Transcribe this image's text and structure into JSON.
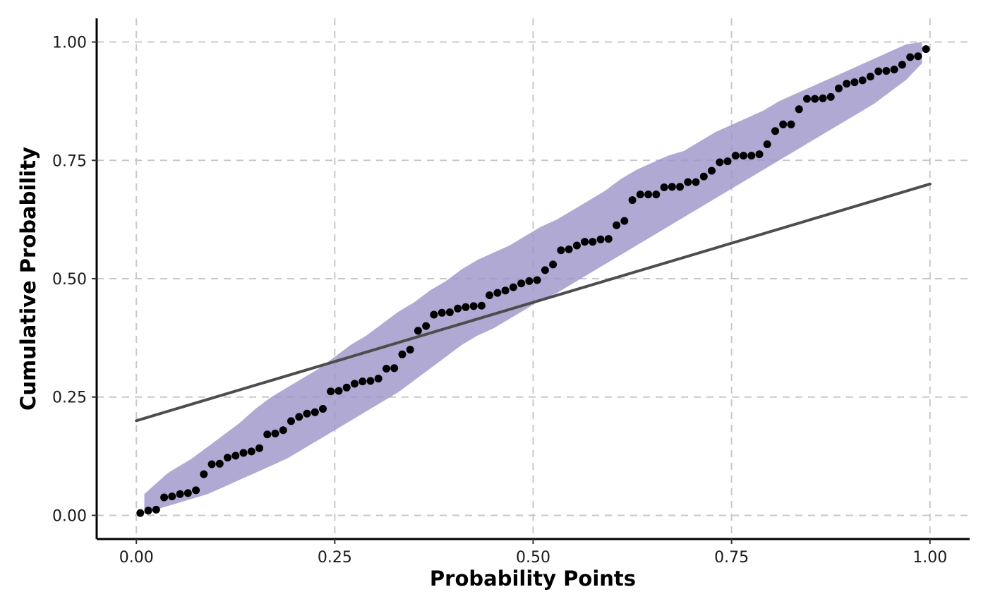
{
  "chart_data": {
    "type": "scatter",
    "title": "",
    "xlabel": "Probability Points",
    "ylabel": "Cumulative Probability",
    "xlim": [
      -0.05,
      1.05
    ],
    "ylim": [
      -0.05,
      1.05
    ],
    "grid": true,
    "legend": "none",
    "x_ticks": [
      0,
      0.25,
      0.5,
      0.75,
      1
    ],
    "x_tick_labels": [
      "0.00",
      "0.25",
      "0.50",
      "0.75",
      "1.00"
    ],
    "y_ticks": [
      0,
      0.25,
      0.5,
      0.75,
      1
    ],
    "y_tick_labels": [
      "0.00",
      "0.25",
      "0.50",
      "0.75",
      "1.00"
    ],
    "colors": {
      "band": "#9b94c8",
      "points": "#000000",
      "line": "#4d4d4d",
      "grid": "#c8c8c8"
    },
    "points": {
      "x": [
        0.005,
        0.015,
        0.025,
        0.035,
        0.045,
        0.055,
        0.065,
        0.075,
        0.085,
        0.095,
        0.105,
        0.115,
        0.125,
        0.135,
        0.145,
        0.155,
        0.165,
        0.175,
        0.185,
        0.195,
        0.205,
        0.215,
        0.225,
        0.235,
        0.245,
        0.255,
        0.265,
        0.275,
        0.285,
        0.295,
        0.305,
        0.315,
        0.325,
        0.335,
        0.345,
        0.355,
        0.365,
        0.375,
        0.385,
        0.395,
        0.405,
        0.415,
        0.425,
        0.435,
        0.445,
        0.455,
        0.465,
        0.475,
        0.485,
        0.495,
        0.505,
        0.515,
        0.525,
        0.535,
        0.545,
        0.555,
        0.565,
        0.575,
        0.585,
        0.595,
        0.605,
        0.615,
        0.625,
        0.635,
        0.645,
        0.655,
        0.665,
        0.675,
        0.685,
        0.695,
        0.705,
        0.715,
        0.725,
        0.735,
        0.745,
        0.755,
        0.765,
        0.775,
        0.785,
        0.795,
        0.805,
        0.815,
        0.825,
        0.835,
        0.845,
        0.855,
        0.865,
        0.875,
        0.885,
        0.895,
        0.905,
        0.915,
        0.925,
        0.935,
        0.945,
        0.955,
        0.965,
        0.975,
        0.985,
        0.995
      ],
      "y": [
        0.005,
        0.01,
        0.012,
        0.038,
        0.04,
        0.045,
        0.047,
        0.053,
        0.087,
        0.108,
        0.109,
        0.122,
        0.126,
        0.132,
        0.135,
        0.142,
        0.171,
        0.173,
        0.18,
        0.199,
        0.208,
        0.215,
        0.218,
        0.225,
        0.262,
        0.263,
        0.27,
        0.278,
        0.283,
        0.284,
        0.289,
        0.31,
        0.311,
        0.34,
        0.35,
        0.39,
        0.4,
        0.424,
        0.428,
        0.429,
        0.437,
        0.44,
        0.442,
        0.443,
        0.465,
        0.47,
        0.475,
        0.482,
        0.49,
        0.495,
        0.497,
        0.518,
        0.53,
        0.56,
        0.562,
        0.57,
        0.578,
        0.578,
        0.583,
        0.584,
        0.613,
        0.622,
        0.666,
        0.678,
        0.678,
        0.678,
        0.693,
        0.694,
        0.694,
        0.704,
        0.704,
        0.716,
        0.728,
        0.746,
        0.748,
        0.76,
        0.76,
        0.76,
        0.763,
        0.784,
        0.812,
        0.826,
        0.826,
        0.858,
        0.88,
        0.88,
        0.881,
        0.884,
        0.902,
        0.912,
        0.915,
        0.919,
        0.927,
        0.938,
        0.939,
        0.942,
        0.952,
        0.968,
        0.97,
        0.985
      ]
    },
    "reference_line": {
      "x": [
        0,
        1
      ],
      "y": [
        0.2,
        0.7
      ]
    },
    "band": {
      "x": [
        0.01,
        0.02,
        0.03,
        0.04,
        0.05,
        0.07,
        0.09,
        0.11,
        0.13,
        0.15,
        0.17,
        0.19,
        0.21,
        0.23,
        0.25,
        0.27,
        0.29,
        0.31,
        0.33,
        0.35,
        0.37,
        0.39,
        0.41,
        0.43,
        0.45,
        0.47,
        0.49,
        0.51,
        0.53,
        0.55,
        0.57,
        0.59,
        0.61,
        0.63,
        0.65,
        0.67,
        0.69,
        0.71,
        0.73,
        0.75,
        0.77,
        0.79,
        0.81,
        0.83,
        0.85,
        0.87,
        0.89,
        0.91,
        0.93,
        0.95,
        0.97,
        0.99
      ],
      "upper": [
        0.045,
        0.06,
        0.075,
        0.09,
        0.1,
        0.12,
        0.145,
        0.17,
        0.195,
        0.225,
        0.25,
        0.27,
        0.29,
        0.31,
        0.335,
        0.36,
        0.38,
        0.405,
        0.43,
        0.45,
        0.475,
        0.495,
        0.52,
        0.54,
        0.555,
        0.57,
        0.59,
        0.61,
        0.625,
        0.645,
        0.665,
        0.685,
        0.71,
        0.73,
        0.745,
        0.76,
        0.77,
        0.79,
        0.81,
        0.825,
        0.84,
        0.855,
        0.875,
        0.89,
        0.905,
        0.92,
        0.935,
        0.95,
        0.965,
        0.98,
        0.995,
        1.0
      ],
      "lower": [
        0.005,
        0.01,
        0.015,
        0.02,
        0.025,
        0.035,
        0.045,
        0.06,
        0.075,
        0.09,
        0.105,
        0.12,
        0.14,
        0.16,
        0.18,
        0.2,
        0.22,
        0.24,
        0.26,
        0.285,
        0.31,
        0.335,
        0.36,
        0.38,
        0.395,
        0.415,
        0.435,
        0.455,
        0.47,
        0.49,
        0.51,
        0.53,
        0.55,
        0.57,
        0.59,
        0.61,
        0.63,
        0.65,
        0.67,
        0.69,
        0.71,
        0.73,
        0.75,
        0.77,
        0.79,
        0.81,
        0.83,
        0.85,
        0.87,
        0.895,
        0.92,
        0.955
      ]
    }
  }
}
